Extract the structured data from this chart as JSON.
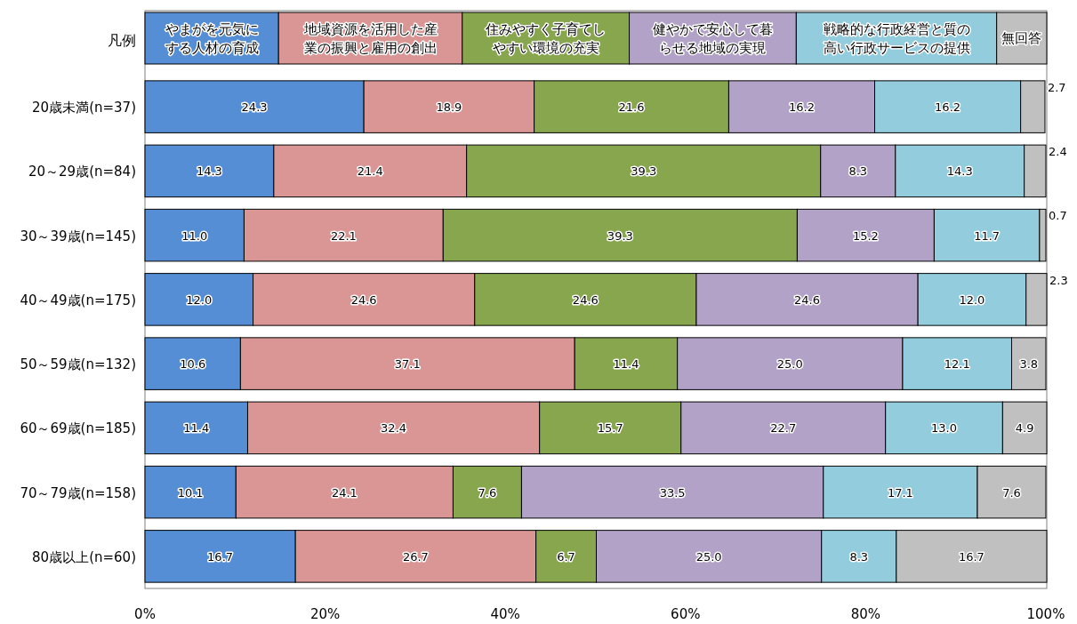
{
  "chart_data": {
    "type": "bar",
    "orientation": "horizontal",
    "stacked": true,
    "legend": "top",
    "legend_title": "凡例",
    "grid": false,
    "categories": [
      "20歳未満(n=37)",
      "20～29歳(n=84)",
      "30～39歳(n=145)",
      "40～49歳(n=175)",
      "50～59歳(n=132)",
      "60～69歳(n=185)",
      "70～79歳(n=158)",
      "80歳以上(n=60)"
    ],
    "xlim": [
      0,
      100.1
    ],
    "xticks": [
      {
        "value": 0,
        "label": "0%"
      },
      {
        "value": 20,
        "label": "20%"
      },
      {
        "value": 40,
        "label": "40%"
      },
      {
        "value": 60,
        "label": "60%"
      },
      {
        "value": 80,
        "label": "80%"
      },
      {
        "value": 100,
        "label": "100%"
      }
    ],
    "series": [
      {
        "name": "やまがを元気にする人材の育成",
        "color": "#558ed5",
        "values": [
          24.3,
          14.3,
          11.0,
          12.0,
          10.6,
          11.4,
          10.1,
          16.7
        ],
        "value_labels": [
          "24.3",
          "14.3",
          "11.0",
          "12.0",
          "10.6",
          "11.4",
          "10.1",
          "16.7"
        ]
      },
      {
        "name": "地域資源を活用した産業の振興と雇用の創出",
        "color": "#d99694",
        "values": [
          18.9,
          21.4,
          22.1,
          24.6,
          37.1,
          32.4,
          24.1,
          26.7
        ],
        "value_labels": [
          "18.9",
          "21.4",
          "22.1",
          "24.6",
          "37.1",
          "32.4",
          "24.1",
          "26.7"
        ]
      },
      {
        "name": "住みやすく子育てしやすい環境の充実",
        "color": "#88a64e",
        "values": [
          21.6,
          39.3,
          39.3,
          24.6,
          11.4,
          15.7,
          7.6,
          6.7
        ],
        "value_labels": [
          "21.6",
          "39.3",
          "39.3",
          "24.6",
          "11.4",
          "15.7",
          "7.6",
          "6.7"
        ]
      },
      {
        "name": "健やかで安心して暮らせる地域の実現",
        "color": "#b3a2c7",
        "values": [
          16.2,
          8.3,
          15.2,
          24.6,
          25.0,
          22.7,
          33.5,
          25.0
        ],
        "value_labels": [
          "16.2",
          "8.3",
          "15.2",
          "24.6",
          "25.0",
          "22.7",
          "33.5",
          "25.0"
        ]
      },
      {
        "name": "戦略的な行政経営と質の高い行政サービスの提供",
        "color": "#93cddd",
        "values": [
          16.2,
          14.3,
          11.7,
          12.0,
          12.1,
          13.0,
          17.1,
          8.3
        ],
        "value_labels": [
          "16.2",
          "14.3",
          "11.7",
          "12.0",
          "12.1",
          "13.0",
          "17.1",
          "8.3"
        ]
      },
      {
        "name": "無回答",
        "color": "#c0c0c0",
        "values": [
          2.7,
          2.4,
          0.7,
          2.3,
          3.8,
          4.9,
          7.6,
          16.7
        ],
        "value_labels": [
          "2.7",
          "2.4",
          "0.7",
          "2.3",
          "3.8",
          "4.9",
          "7.6",
          "16.7"
        ]
      }
    ]
  }
}
